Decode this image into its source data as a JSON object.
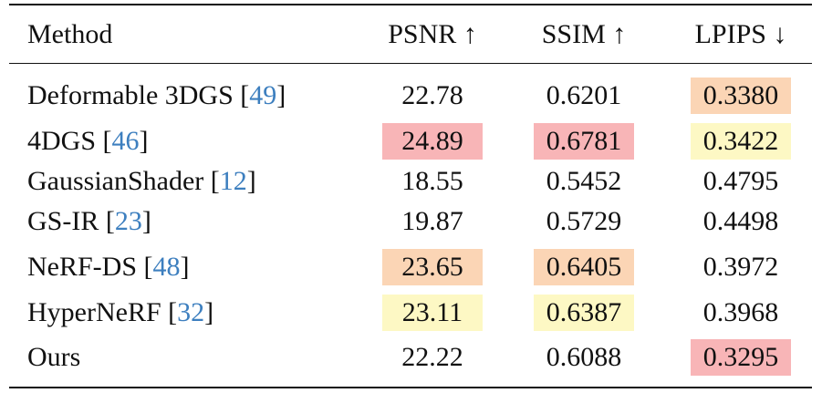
{
  "header": [
    "Method",
    "PSNR ↑",
    "SSIM ↑",
    "LPIPS ↓"
  ],
  "rows": [
    {
      "method": "Deformable 3DGS",
      "cite": "[49]",
      "cells": [
        "22.78",
        "0.6201",
        "0.3380"
      ],
      "colors": [
        null,
        null,
        "#fbd5b5"
      ]
    },
    {
      "method": "4DGS",
      "cite": "[46]",
      "cells": [
        "24.89",
        "0.6781",
        "0.3422"
      ],
      "colors": [
        "#f8b5b7",
        "#f8b5b7",
        "#fdf8c4"
      ]
    },
    {
      "method": "GaussianShader",
      "cite": "[12]",
      "cells": [
        "18.55",
        "0.5452",
        "0.4795"
      ],
      "colors": [
        null,
        null,
        null
      ]
    },
    {
      "method": "GS-IR",
      "cite": "[23]",
      "cells": [
        "19.87",
        "0.5729",
        "0.4498"
      ],
      "colors": [
        null,
        null,
        null
      ]
    },
    {
      "method": "NeRF-DS",
      "cite": "[48]",
      "cells": [
        "23.65",
        "0.6405",
        "0.3972"
      ],
      "colors": [
        "#fbd5b5",
        "#fbd5b5",
        null
      ]
    },
    {
      "method": "HyperNeRF",
      "cite": "[32]",
      "cells": [
        "23.11",
        "0.6387",
        "0.3968"
      ],
      "colors": [
        "#fdf8c4",
        "#fdf8c4",
        null
      ]
    },
    {
      "method": "Ours",
      "cite": null,
      "cells": [
        "22.22",
        "0.6088",
        "0.3295"
      ],
      "colors": [
        null,
        null,
        "#f8b5b7"
      ]
    }
  ]
}
